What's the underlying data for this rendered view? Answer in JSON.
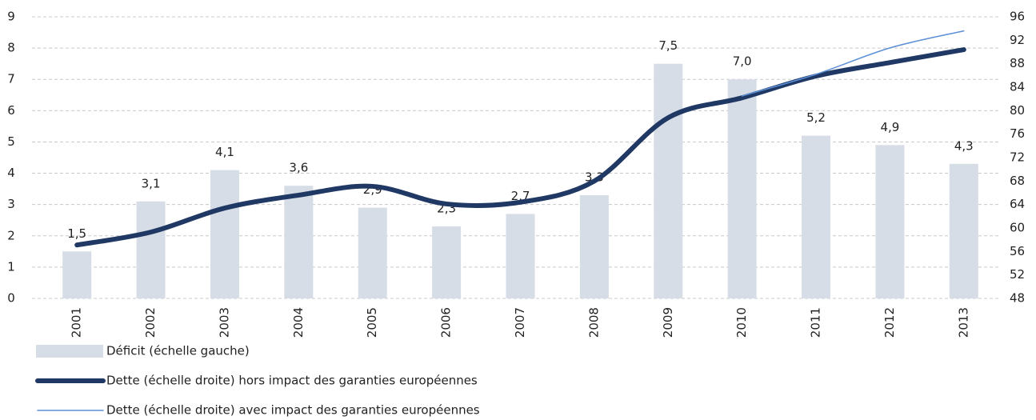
{
  "chart_data": {
    "type": "bar-line",
    "categories": [
      "2001",
      "2002",
      "2003",
      "2004",
      "2005",
      "2006",
      "2007",
      "2008",
      "2009",
      "2010",
      "2011",
      "2012",
      "2013"
    ],
    "series": [
      {
        "name": "Déficit (échelle gauche)",
        "type": "bar",
        "color": "#d6dde6",
        "values": [
          1.5,
          3.1,
          4.1,
          3.6,
          2.9,
          2.3,
          2.7,
          3.3,
          7.5,
          7.0,
          5.2,
          4.9,
          4.3
        ],
        "value_labels": [
          "1,5",
          "3,1",
          "4,1",
          "3,6",
          "2,9",
          "2,3",
          "2,7",
          "3,3",
          "7,5",
          "7,0",
          "5,2",
          "4,9",
          "4,3"
        ]
      },
      {
        "name": "Dette (échelle droite) hors impact des garanties européennes",
        "type": "line",
        "axis": "y2",
        "color": "#1f3864",
        "width": 6,
        "values": [
          57.1,
          59.3,
          63.4,
          65.6,
          67.1,
          64.1,
          64.4,
          68.0,
          78.8,
          82.2,
          85.9,
          88.2,
          90.4
        ]
      },
      {
        "name": "Dette (échelle droite) avec impact des garanties européennes",
        "type": "line",
        "axis": "y2",
        "color": "#5b8fd6",
        "width": 1.5,
        "values": [
          null,
          null,
          null,
          null,
          null,
          null,
          null,
          null,
          null,
          82.5,
          86.2,
          90.7,
          93.6
        ]
      }
    ],
    "ylim": [
      0,
      9
    ],
    "yticks": [
      0,
      1,
      2,
      3,
      4,
      5,
      6,
      7,
      8,
      9
    ],
    "y2lim": [
      48,
      96
    ],
    "y2ticks": [
      48,
      52,
      56,
      60,
      64,
      68,
      72,
      76,
      80,
      84,
      88,
      92,
      96
    ],
    "grid": true,
    "legend": "bottom"
  }
}
